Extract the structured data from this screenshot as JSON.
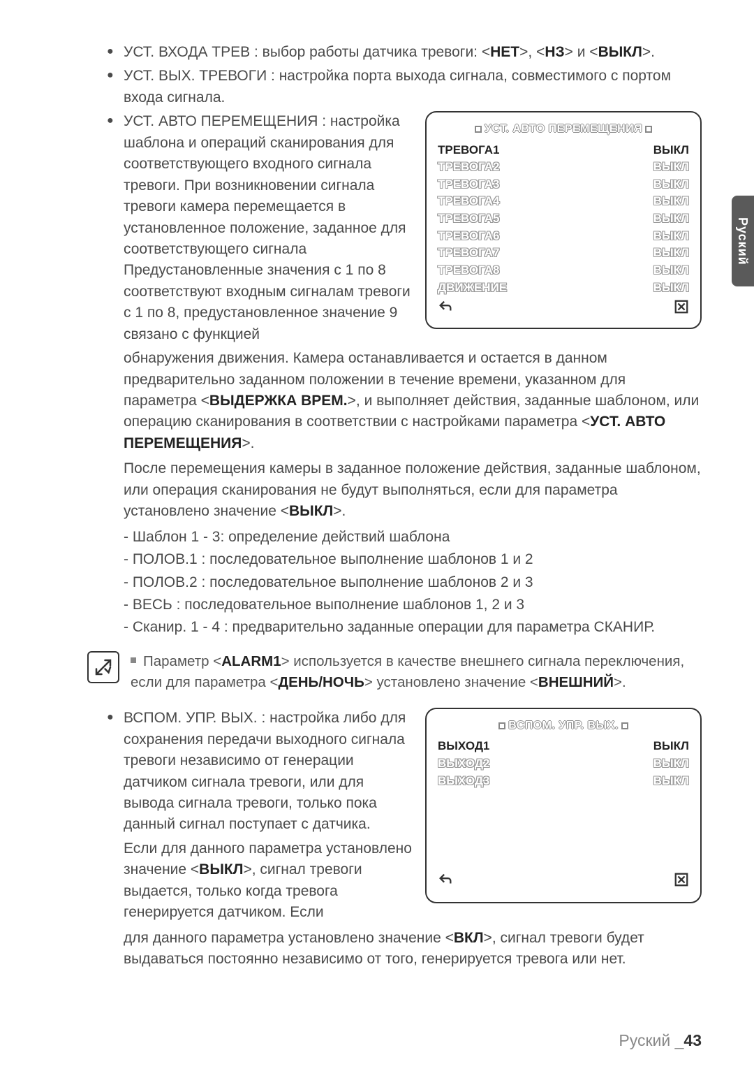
{
  "sideTab": "Руский",
  "footer": {
    "lang": "Руский _",
    "page": "43"
  },
  "bullets": {
    "b1": "УСТ. ВХОДА ТРЕВ : выбор работы датчика тревоги: <",
    "b1_net": "НЕТ",
    "b1_sep1": ">, <",
    "b1_nz": "НЗ",
    "b1_sep2": "> и <",
    "b1_off": "ВЫКЛ",
    "b1_end": ">.",
    "b2": "УСТ. ВЫХ. ТРЕВОГИ : настройка порта выхода сигнала, совместимого с портом входа сигнала.",
    "b3": "УСТ. АВТО ПЕРЕМЕЩЕНИЯ : настройка шаблона и операций сканирования для соответствующего входного сигнала тревоги. При возникновении сигнала тревоги камера перемещается в установленное положение, заданное для соответствующего сигнала Предустановленные значения с 1 по 8 соответствуют входным сигналам тревоги с 1 по 8, предустановленное значение 9 связано с функцией",
    "b3_cont_a": "обнаружения движения. Камера останавливается и остается в данном предварительно заданном положении в течение времени, указанном для параметра <",
    "b3_bold1": "ВЫДЕРЖКА ВРЕМ.",
    "b3_cont_b": ">, и выполняет действия, заданные шаблоном, или операцию сканирования в соответствии с настройками параметра <",
    "b3_bold2": "УСТ. АВТО ПЕРЕМЕЩЕНИЯ",
    "b3_cont_c": ">.",
    "b3_after1": "После перемещения камеры в заданное положение действия, заданные шаблоном, или операция сканирования не будут выполняться, если для параметра установлено значение <",
    "b3_after1_bold": "ВЫКЛ",
    "b3_after1_end": ">.",
    "b4": "ВСПОМ. УПР. ВЫХ. : настройка либо для сохранения передачи выходного сигнала тревоги независимо от генерации датчиком сигнала тревоги, или для вывода сигнала тревоги, только пока данный сигнал поступает с датчика.",
    "b4_b": "Если для данного параметра установлено значение <",
    "b4_b_bold": "ВЫКЛ",
    "b4_b_end": ">, сигнал тревоги выдается, только когда тревога генерируется датчиком. Если",
    "b4_cont": "для данного параметра установлено значение <",
    "b4_cont_bold": "ВКЛ",
    "b4_cont_end": ">, сигнал тревоги будет выдаваться постоянно независимо от того, генерируется тревога или нет."
  },
  "dash": {
    "d1": "- Шаблон 1 - 3: определение действий шаблона",
    "d2": "- ПОЛОВ.1 : последовательное выполнение шаблонов 1 и 2",
    "d3": "- ПОЛОВ.2 : последовательное выполнение шаблонов 2 и 3",
    "d4": "- ВЕСЬ : последовательное выполнение шаблонов 1, 2 и 3",
    "d5": "- Сканир. 1 - 4 : предварительно заданные операции для параметра СКАНИР."
  },
  "note": {
    "a": "Параметр <",
    "bold1": "ALARM1",
    "b": "> используется в качестве внешнего сигнала переключения, если для параметра <",
    "bold2": "ДЕНЬ/НОЧЬ",
    "c": "> установлено значение <",
    "bold3": "ВНЕШНИЙ",
    "d": ">."
  },
  "osd1": {
    "title": "УСТ. АВТО ПЕРЕМЕЩЕНИЯ",
    "rows": [
      {
        "l": "ТРЕВОГА1",
        "v": "ВЫКЛ",
        "sel": true
      },
      {
        "l": "ТРЕВОГА2",
        "v": "ВЫКЛ"
      },
      {
        "l": "ТРЕВОГА3",
        "v": "ВЫКЛ"
      },
      {
        "l": "ТРЕВОГА4",
        "v": "ВЫКЛ"
      },
      {
        "l": "ТРЕВОГА5",
        "v": "ВЫКЛ"
      },
      {
        "l": "ТРЕВОГА6",
        "v": "ВЫКЛ"
      },
      {
        "l": "ТРЕВОГА7",
        "v": "ВЫКЛ"
      },
      {
        "l": "ТРЕВОГА8",
        "v": "ВЫКЛ"
      },
      {
        "l": "ДВИЖЕНИЕ",
        "v": "ВЫКЛ"
      }
    ]
  },
  "osd2": {
    "title": "ВСПОМ. УПР. ВЫХ.",
    "rows": [
      {
        "l": "ВЫХОД1",
        "v": "ВЫКЛ",
        "sel": true
      },
      {
        "l": "ВЫХОД2",
        "v": "ВЫКЛ"
      },
      {
        "l": "ВЫХОД3",
        "v": "ВЫКЛ"
      }
    ]
  }
}
